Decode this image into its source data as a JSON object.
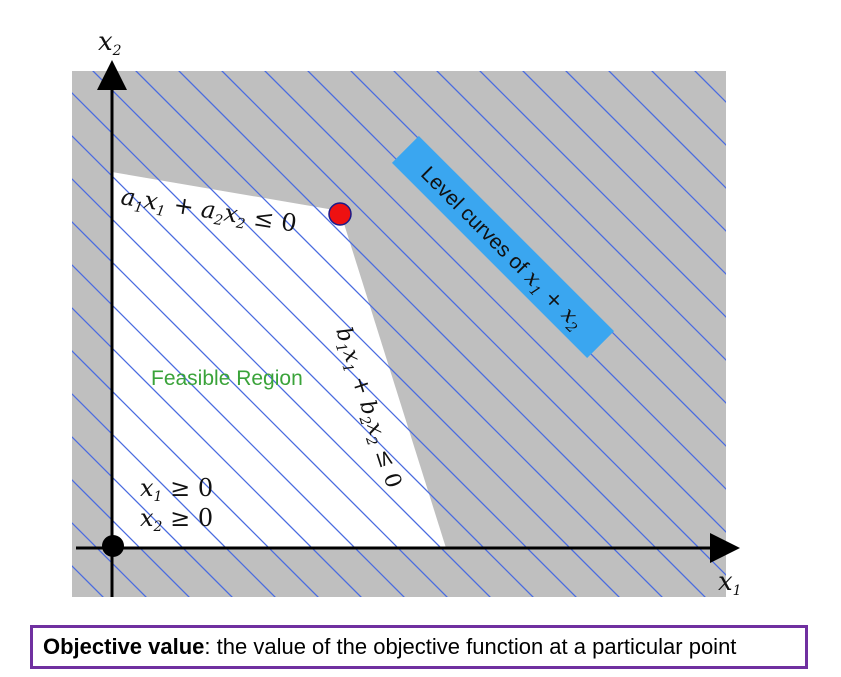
{
  "axes": {
    "x_label": "x",
    "x_label_sub": "1",
    "y_label": "x",
    "y_label_sub": "2"
  },
  "constraints": {
    "top": {
      "a1": "a",
      "a1_sub": "1",
      "x1": "x",
      "x1_sub": "1",
      "plus": " + ",
      "a2": "a",
      "a2_sub": "2",
      "x2": "x",
      "x2_sub": "2",
      "rel": " ≤ 0"
    },
    "right": {
      "b1": "b",
      "b1_sub": "1",
      "x1": "x",
      "x1_sub": "1",
      "plus": " + ",
      "b2": "b",
      "b2_sub": "2",
      "x2": "x",
      "x2_sub": "2",
      "rel": " ≤ 0"
    },
    "nonneg_1": {
      "var": "x",
      "sub": "1",
      "rel": " ≥ 0"
    },
    "nonneg_2": {
      "var": "x",
      "sub": "2",
      "rel": " ≥ 0"
    }
  },
  "feasible_label": "Feasible Region",
  "level_curves_label": {
    "text": "Level curves of ",
    "var1": "x",
    "sub1": "1",
    "plus": " + ",
    "var2": "x",
    "sub2": "2"
  },
  "caption": {
    "bold": "Objective value",
    "rest": ": the value of the objective function at a particular point"
  },
  "colors": {
    "infeasible": "#bfbfbf",
    "feasible": "#ffffff",
    "level_lines": "#4a6be0",
    "optimum_point": "#ee1111",
    "origin_point": "#000000",
    "label_box": "#3aa6f0",
    "feasible_text": "#3aa33a",
    "caption_border": "#7030a0"
  }
}
